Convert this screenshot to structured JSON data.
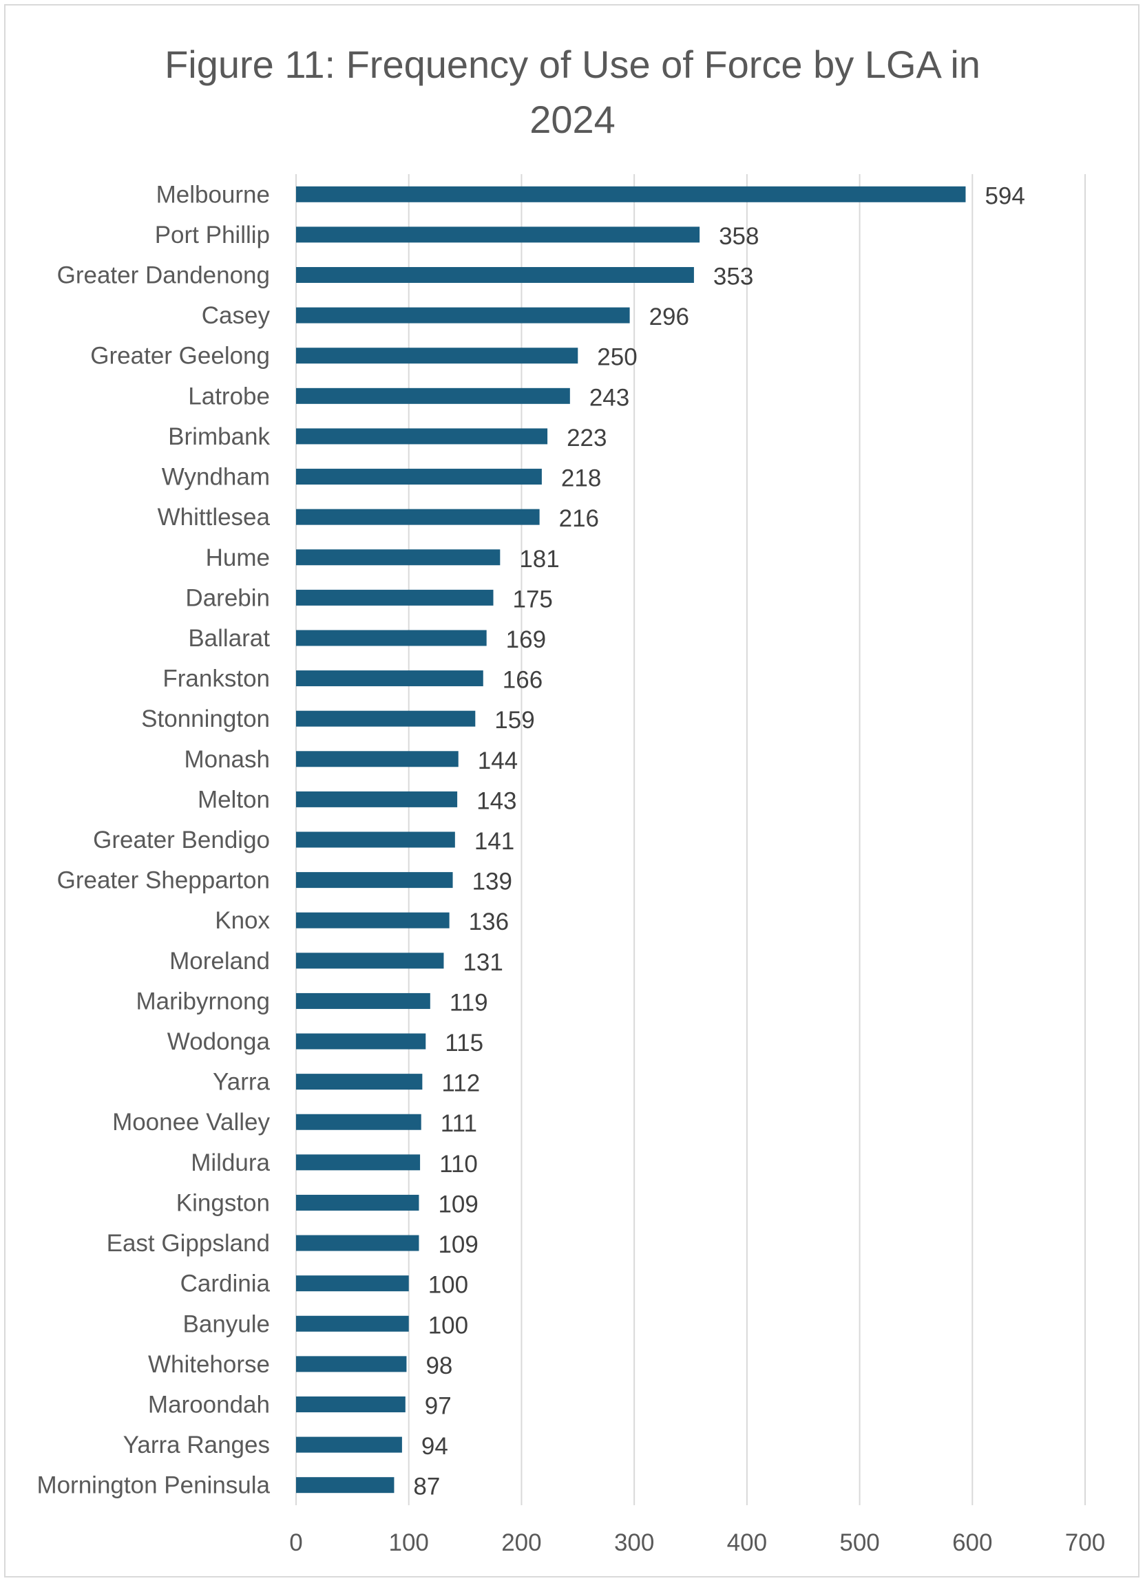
{
  "chart_data": {
    "type": "bar",
    "orientation": "horizontal",
    "title_lines": [
      "Figure 11: Frequency of Use of Force by LGA in",
      "2024"
    ],
    "title": "Figure 11: Frequency of Use of Force by LGA in 2024",
    "categories": [
      "Melbourne",
      "Port Phillip",
      "Greater Dandenong",
      "Casey",
      "Greater Geelong",
      "Latrobe",
      "Brimbank",
      "Wyndham",
      "Whittlesea",
      "Hume",
      "Darebin",
      "Ballarat",
      "Frankston",
      "Stonnington",
      "Monash",
      "Melton",
      "Greater Bendigo",
      "Greater Shepparton",
      "Knox",
      "Moreland",
      "Maribyrnong",
      "Wodonga",
      "Yarra",
      "Moonee Valley",
      "Mildura",
      "Kingston",
      "East Gippsland",
      "Cardinia",
      "Banyule",
      "Whitehorse",
      "Maroondah",
      "Yarra Ranges",
      "Mornington Peninsula"
    ],
    "values": [
      594,
      358,
      353,
      296,
      250,
      243,
      223,
      218,
      216,
      181,
      175,
      169,
      166,
      159,
      144,
      143,
      141,
      139,
      136,
      131,
      119,
      115,
      112,
      111,
      110,
      109,
      109,
      100,
      100,
      98,
      97,
      94,
      87
    ],
    "xlim": [
      0,
      700
    ],
    "xticks": [
      0,
      100,
      200,
      300,
      400,
      500,
      600,
      700
    ],
    "xlabel": "",
    "ylabel": "",
    "grid": true,
    "legend": "none",
    "data_labels": true,
    "bar_color": "#1a5d80",
    "grid_color": "#d9d9d9"
  }
}
